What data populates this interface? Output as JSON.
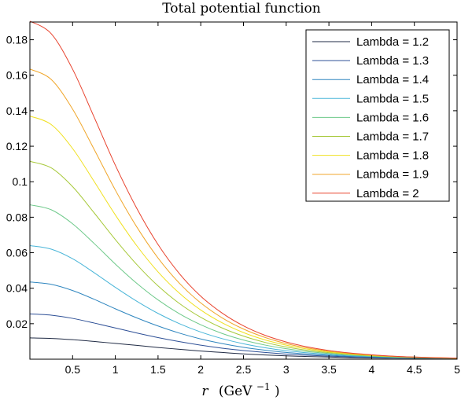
{
  "chart_data": {
    "type": "line",
    "title": "Total potential function",
    "xlabel_var": "r",
    "xlabel_unit": "(GeV",
    "xlabel_exp": "−1",
    "xlabel_close": ")",
    "ylabel": "",
    "xlim": [
      0,
      5
    ],
    "ylim": [
      0,
      0.19
    ],
    "xticks": [
      0.5,
      1,
      1.5,
      2,
      2.5,
      3,
      3.5,
      4,
      4.5,
      5
    ],
    "xtick_labels": [
      "0.5",
      "1",
      "1.5",
      "2",
      "2.5",
      "3",
      "3.5",
      "4",
      "4.5",
      "5"
    ],
    "yticks": [
      0.02,
      0.04,
      0.06,
      0.08,
      0.1,
      0.12,
      0.14,
      0.16,
      0.18
    ],
    "ytick_labels": [
      "0.02",
      "0.04",
      "0.06",
      "0.08",
      "0.1",
      "0.12",
      "0.14",
      "0.16",
      "0.18"
    ],
    "grid": false,
    "legend_position": "top-right",
    "x": [
      0,
      0.25,
      0.5,
      0.75,
      1,
      1.25,
      1.5,
      1.75,
      2,
      2.25,
      2.5,
      2.75,
      3,
      3.25,
      3.5,
      3.75,
      4,
      4.25,
      4.5,
      4.75,
      5
    ],
    "series": [
      {
        "name": "Lambda = 1.2",
        "color": "#1f2a44",
        "values": [
          0.012,
          0.0117,
          0.011,
          0.01,
          0.0089,
          0.0078,
          0.0066,
          0.0056,
          0.0046,
          0.0038,
          0.003,
          0.0024,
          0.0019,
          0.0015,
          0.0012,
          0.0009,
          0.0007,
          0.0006,
          0.0005,
          0.0004,
          0.0003
        ]
      },
      {
        "name": "Lambda = 1.3",
        "color": "#2d4f96",
        "values": [
          0.0255,
          0.0248,
          0.023,
          0.0204,
          0.0176,
          0.0148,
          0.0122,
          0.0099,
          0.0079,
          0.0062,
          0.0049,
          0.0038,
          0.0029,
          0.0022,
          0.0017,
          0.0013,
          0.001,
          0.0008,
          0.0006,
          0.0005,
          0.0004
        ]
      },
      {
        "name": "Lambda = 1.4",
        "color": "#2f86bf",
        "values": [
          0.0435,
          0.0422,
          0.0387,
          0.0338,
          0.0284,
          0.0233,
          0.0187,
          0.0147,
          0.0114,
          0.0088,
          0.0067,
          0.0051,
          0.0038,
          0.0029,
          0.0022,
          0.0016,
          0.0012,
          0.0009,
          0.0007,
          0.0005,
          0.0004
        ]
      },
      {
        "name": "Lambda = 1.5",
        "color": "#49b5d8",
        "values": [
          0.064,
          0.062,
          0.0566,
          0.0488,
          0.0405,
          0.0327,
          0.0258,
          0.02,
          0.0153,
          0.0116,
          0.0087,
          0.0065,
          0.0048,
          0.0036,
          0.0027,
          0.002,
          0.0015,
          0.0011,
          0.0008,
          0.0006,
          0.0005
        ]
      },
      {
        "name": "Lambda = 1.6",
        "color": "#6ec98a",
        "values": [
          0.087,
          0.0842,
          0.0763,
          0.0653,
          0.0536,
          0.0428,
          0.0334,
          0.0256,
          0.0194,
          0.0145,
          0.0108,
          0.008,
          0.0059,
          0.0043,
          0.0032,
          0.0023,
          0.0017,
          0.0012,
          0.0009,
          0.0007,
          0.0005
        ]
      },
      {
        "name": "Lambda = 1.7",
        "color": "#a7c93a",
        "values": [
          0.1115,
          0.1078,
          0.0972,
          0.0826,
          0.0674,
          0.0534,
          0.0413,
          0.0314,
          0.0236,
          0.0176,
          0.013,
          0.0095,
          0.0069,
          0.005,
          0.0037,
          0.0027,
          0.0019,
          0.0014,
          0.001,
          0.0007,
          0.0005
        ]
      },
      {
        "name": "Lambda = 1.8",
        "color": "#f0e020",
        "values": [
          0.137,
          0.1322,
          0.1187,
          0.1003,
          0.0813,
          0.064,
          0.0492,
          0.0372,
          0.0277,
          0.0205,
          0.015,
          0.0109,
          0.0079,
          0.0057,
          0.0041,
          0.0029,
          0.0021,
          0.0015,
          0.0011,
          0.0008,
          0.0006
        ]
      },
      {
        "name": "Lambda = 1.9",
        "color": "#f0a62a",
        "values": [
          0.1635,
          0.1576,
          0.1409,
          0.1184,
          0.0953,
          0.0746,
          0.057,
          0.0428,
          0.0317,
          0.0233,
          0.017,
          0.0123,
          0.0088,
          0.0063,
          0.0045,
          0.0032,
          0.0023,
          0.0016,
          0.0012,
          0.0008,
          0.0006
        ]
      },
      {
        "name": "Lambda = 2",
        "color": "#e8432e",
        "values": [
          0.1905,
          0.1834,
          0.1634,
          0.1366,
          0.1093,
          0.0851,
          0.0646,
          0.0482,
          0.0355,
          0.026,
          0.0188,
          0.0135,
          0.0097,
          0.0069,
          0.0049,
          0.0035,
          0.0025,
          0.0017,
          0.0012,
          0.0009,
          0.0006
        ]
      }
    ]
  }
}
